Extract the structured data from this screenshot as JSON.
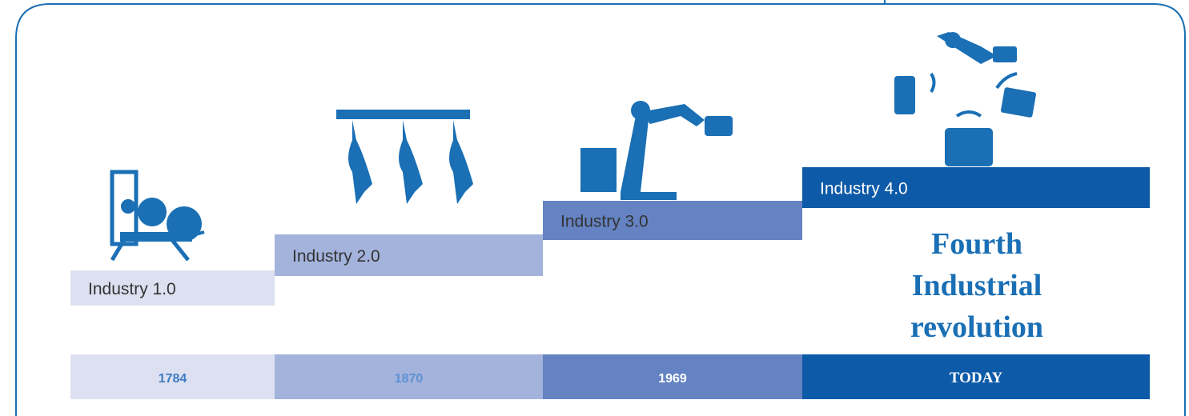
{
  "title_lines": [
    "Fourth",
    "Industrial",
    "revolution"
  ],
  "stages": [
    {
      "label": "Industry 1.0",
      "year": "1784",
      "color": "#dde0f0",
      "year_color": "#3d7cc4"
    },
    {
      "label": "Industry 2.0",
      "year": "1870",
      "color": "#a4b3dc",
      "year_color": "#5c90d2"
    },
    {
      "label": "Industry 3.0",
      "year": "1969",
      "color": "#6583c3",
      "year_color": "#ffffff"
    },
    {
      "label": "Industry 4.0",
      "year": "TODAY",
      "color": "#0d5aa8",
      "year_color": "#ffffff"
    }
  ]
}
